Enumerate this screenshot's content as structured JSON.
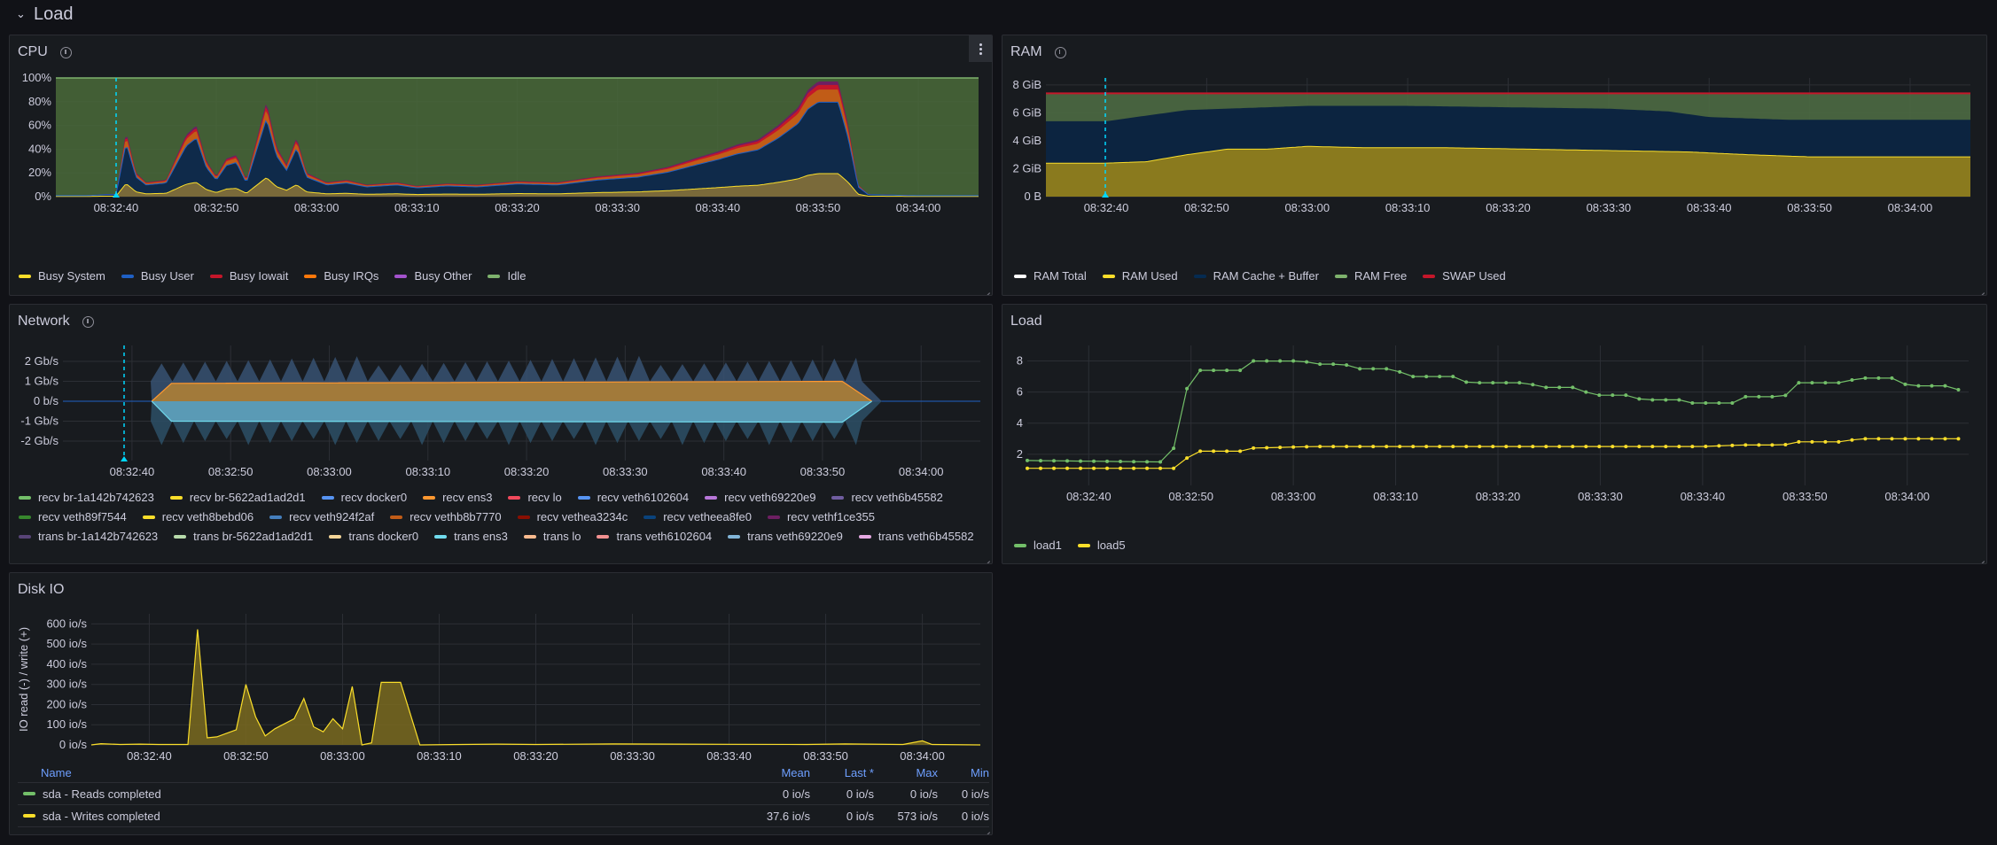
{
  "row": {
    "title": "Load"
  },
  "cpu": {
    "title": "CPU",
    "legend": [
      {
        "label": "Busy System",
        "color": "#fade2a"
      },
      {
        "label": "Busy User",
        "color": "#1f60c4"
      },
      {
        "label": "Busy Iowait",
        "color": "#c4162a"
      },
      {
        "label": "Busy IRQs",
        "color": "#ff780a"
      },
      {
        "label": "Busy Other",
        "color": "#a352cc"
      },
      {
        "label": "Idle",
        "color": "#7eb26d"
      }
    ],
    "chart_data": {
      "type": "area",
      "x": [
        "08:32:40",
        "08:32:50",
        "08:33:00",
        "08:33:10",
        "08:33:20",
        "08:33:30",
        "08:33:40",
        "08:33:50",
        "08:34:00"
      ],
      "y_ticks": [
        "0%",
        "20%",
        "40%",
        "60%",
        "80%",
        "100%"
      ],
      "ylim": [
        0,
        100
      ],
      "time_range": [
        "08:32:34",
        "08:34:06"
      ],
      "busy_total_percent": [
        [
          34,
          1
        ],
        [
          37,
          1
        ],
        [
          39,
          2
        ],
        [
          40,
          2
        ],
        [
          41,
          55
        ],
        [
          42,
          20
        ],
        [
          43,
          12
        ],
        [
          45,
          14
        ],
        [
          47,
          52
        ],
        [
          48,
          60
        ],
        [
          49,
          30
        ],
        [
          50,
          17
        ],
        [
          51,
          32
        ],
        [
          52,
          35
        ],
        [
          53,
          14
        ],
        [
          55,
          80
        ],
        [
          56,
          42
        ],
        [
          57,
          27
        ],
        [
          58,
          50
        ],
        [
          59,
          20
        ],
        [
          61,
          12
        ],
        [
          63,
          14
        ],
        [
          65,
          10
        ],
        [
          68,
          12
        ],
        [
          70,
          9
        ],
        [
          73,
          11
        ],
        [
          76,
          10
        ],
        [
          80,
          13
        ],
        [
          84,
          12
        ],
        [
          88,
          17
        ],
        [
          92,
          20
        ],
        [
          95,
          25
        ],
        [
          98,
          33
        ],
        [
          100,
          38
        ],
        [
          102,
          44
        ],
        [
          104,
          48
        ],
        [
          106,
          60
        ],
        [
          108,
          75
        ],
        [
          109,
          90
        ],
        [
          110,
          97
        ],
        [
          112,
          97
        ],
        [
          113,
          60
        ],
        [
          114,
          10
        ],
        [
          115,
          2
        ],
        [
          120,
          1
        ],
        [
          126,
          1
        ]
      ]
    }
  },
  "ram": {
    "title": "RAM",
    "legend": [
      {
        "label": "RAM Total",
        "color": "#ffffff"
      },
      {
        "label": "RAM Used",
        "color": "#fade2a"
      },
      {
        "label": "RAM Cache + Buffer",
        "color": "#052b51"
      },
      {
        "label": "RAM Free",
        "color": "#7eb26d"
      },
      {
        "label": "SWAP Used",
        "color": "#c4162a"
      }
    ],
    "chart_data": {
      "type": "area",
      "x": [
        "08:32:40",
        "08:32:50",
        "08:33:00",
        "08:33:10",
        "08:33:20",
        "08:33:30",
        "08:33:40",
        "08:33:50",
        "08:34:00"
      ],
      "y_ticks": [
        "0 B",
        "2 GiB",
        "4 GiB",
        "6 GiB",
        "8 GiB"
      ],
      "ylim": [
        0,
        8.5
      ],
      "total_gib": 7.4,
      "used_gib": [
        [
          34,
          2.4
        ],
        [
          40,
          2.4
        ],
        [
          44,
          2.5
        ],
        [
          48,
          3.0
        ],
        [
          52,
          3.4
        ],
        [
          56,
          3.4
        ],
        [
          60,
          3.6
        ],
        [
          66,
          3.5
        ],
        [
          74,
          3.5
        ],
        [
          82,
          3.4
        ],
        [
          90,
          3.3
        ],
        [
          98,
          3.2
        ],
        [
          104,
          3.0
        ],
        [
          110,
          2.85
        ],
        [
          126,
          2.85
        ]
      ],
      "used_plus_cache_gib": [
        [
          34,
          5.4
        ],
        [
          40,
          5.4
        ],
        [
          44,
          5.8
        ],
        [
          48,
          6.2
        ],
        [
          52,
          6.3
        ],
        [
          60,
          6.5
        ],
        [
          70,
          6.5
        ],
        [
          80,
          6.4
        ],
        [
          90,
          6.3
        ],
        [
          96,
          6.1
        ],
        [
          100,
          5.7
        ],
        [
          108,
          5.5
        ],
        [
          126,
          5.5
        ]
      ]
    }
  },
  "network": {
    "title": "Network",
    "legend": [
      {
        "label": "recv br-1a142b742623",
        "color": "#73bf69"
      },
      {
        "label": "recv br-5622ad1ad2d1",
        "color": "#fade2a"
      },
      {
        "label": "recv docker0",
        "color": "#5794f2"
      },
      {
        "label": "recv ens3",
        "color": "#ff9830"
      },
      {
        "label": "recv lo",
        "color": "#f2495c"
      },
      {
        "label": "recv veth6102604",
        "color": "#5794f2"
      },
      {
        "label": "recv veth69220e9",
        "color": "#b877d9"
      },
      {
        "label": "recv veth6b45582",
        "color": "#705da0"
      },
      {
        "label": "recv veth89f7544",
        "color": "#37872d"
      },
      {
        "label": "recv veth8bebd06",
        "color": "#fade2a"
      },
      {
        "label": "recv veth924f2af",
        "color": "#447ebc"
      },
      {
        "label": "recv vethb8b7770",
        "color": "#c15c17"
      },
      {
        "label": "recv vethea3234c",
        "color": "#890f02"
      },
      {
        "label": "recv vetheea8fe0",
        "color": "#0a437c"
      },
      {
        "label": "recv vethf1ce355",
        "color": "#6d1f62"
      },
      {
        "label": "trans br-1a142b742623",
        "color": "#584477"
      },
      {
        "label": "trans br-5622ad1ad2d1",
        "color": "#b7dbab"
      },
      {
        "label": "trans docker0",
        "color": "#f4d598"
      },
      {
        "label": "trans ens3",
        "color": "#70dbed"
      },
      {
        "label": "trans lo",
        "color": "#f9ba8f"
      },
      {
        "label": "trans veth6102604",
        "color": "#f29191"
      },
      {
        "label": "trans veth69220e9",
        "color": "#82b5d8"
      },
      {
        "label": "trans veth6b45582",
        "color": "#e5a8e2"
      }
    ],
    "chart_data": {
      "type": "area",
      "x": [
        "08:32:40",
        "08:32:50",
        "08:33:00",
        "08:33:10",
        "08:33:20",
        "08:33:30",
        "08:33:40",
        "08:33:50",
        "08:34:00"
      ],
      "y_ticks": [
        "2 Gb/s",
        "1 Gb/s",
        "0 b/s",
        "-1 Gb/s",
        "-2 Gb/s"
      ],
      "ylim": [
        -2.6,
        2.6
      ],
      "recv_gbps_range": [
        1.0,
        2.2
      ],
      "trans_gbps_range": [
        -1.0,
        -2.3
      ]
    }
  },
  "load": {
    "title": "Load",
    "legend": [
      {
        "label": "load1",
        "color": "#73bf69"
      },
      {
        "label": "load5",
        "color": "#fade2a"
      }
    ],
    "chart_data": {
      "type": "line",
      "x": [
        "08:32:40",
        "08:32:50",
        "08:33:00",
        "08:33:10",
        "08:33:20",
        "08:33:30",
        "08:33:40",
        "08:33:50",
        "08:34:00"
      ],
      "y_ticks": [
        "2",
        "4",
        "6",
        "8"
      ],
      "ylim": [
        0,
        9
      ],
      "load1": [
        [
          34,
          1.6
        ],
        [
          48,
          1.5
        ],
        [
          50,
          7.4
        ],
        [
          55,
          7.4
        ],
        [
          56,
          8.0
        ],
        [
          61,
          8.0
        ],
        [
          62,
          7.8
        ],
        [
          65,
          7.8
        ],
        [
          66,
          7.5
        ],
        [
          70,
          7.5
        ],
        [
          71,
          7.0
        ],
        [
          76,
          7.0
        ],
        [
          77,
          6.6
        ],
        [
          83,
          6.6
        ],
        [
          84,
          6.3
        ],
        [
          88,
          6.3
        ],
        [
          89,
          5.8
        ],
        [
          93,
          5.8
        ],
        [
          94,
          5.5
        ],
        [
          98,
          5.5
        ],
        [
          99,
          5.3
        ],
        [
          103,
          5.3
        ],
        [
          104,
          5.7
        ],
        [
          108,
          5.7
        ],
        [
          109,
          6.6
        ],
        [
          114,
          6.6
        ],
        [
          115,
          6.9
        ],
        [
          119,
          6.9
        ],
        [
          120,
          6.4
        ],
        [
          124,
          6.4
        ],
        [
          126,
          5.9
        ]
      ],
      "load5": [
        [
          34,
          1.1
        ],
        [
          49,
          1.1
        ],
        [
          50,
          2.2
        ],
        [
          55,
          2.2
        ],
        [
          56,
          2.4
        ],
        [
          62,
          2.5
        ],
        [
          80,
          2.5
        ],
        [
          100,
          2.5
        ],
        [
          104,
          2.6
        ],
        [
          108,
          2.6
        ],
        [
          109,
          2.8
        ],
        [
          114,
          2.8
        ],
        [
          115,
          3.0
        ],
        [
          126,
          3.0
        ]
      ]
    }
  },
  "disk": {
    "title": "Disk IO",
    "ylabel": "IO read (-) / write (+)",
    "chart_data": {
      "type": "area",
      "x": [
        "08:32:40",
        "08:32:50",
        "08:33:00",
        "08:33:10",
        "08:33:20",
        "08:33:30",
        "08:33:40",
        "08:33:50",
        "08:34:00"
      ],
      "y_ticks": [
        "0 io/s",
        "100 io/s",
        "200 io/s",
        "300 io/s",
        "400 io/s",
        "500 io/s",
        "600 io/s"
      ],
      "ylim": [
        0,
        650
      ],
      "writes_io_s": [
        [
          34,
          0
        ],
        [
          35,
          6
        ],
        [
          37,
          2
        ],
        [
          39,
          4
        ],
        [
          41,
          2
        ],
        [
          44,
          2
        ],
        [
          45,
          573
        ],
        [
          46,
          35
        ],
        [
          47,
          40
        ],
        [
          49,
          75
        ],
        [
          50,
          300
        ],
        [
          51,
          140
        ],
        [
          52,
          45
        ],
        [
          53,
          80
        ],
        [
          55,
          130
        ],
        [
          56,
          230
        ],
        [
          57,
          90
        ],
        [
          58,
          65
        ],
        [
          59,
          130
        ],
        [
          60,
          80
        ],
        [
          61,
          290
        ],
        [
          62,
          0
        ],
        [
          63,
          10
        ],
        [
          64,
          310
        ],
        [
          66,
          310
        ],
        [
          68,
          0
        ],
        [
          76,
          4
        ],
        [
          80,
          2
        ],
        [
          88,
          5
        ],
        [
          100,
          3
        ],
        [
          108,
          2
        ],
        [
          112,
          5
        ],
        [
          118,
          2
        ],
        [
          120,
          20
        ],
        [
          121,
          2
        ],
        [
          126,
          0
        ]
      ]
    },
    "table": {
      "headers": {
        "name": "Name",
        "mean": "Mean",
        "last": "Last *",
        "max": "Max",
        "min": "Min"
      },
      "rows": [
        {
          "name": "sda - Reads completed",
          "color": "#73bf69",
          "mean": "0 io/s",
          "last": "0 io/s",
          "max": "0 io/s",
          "min": "0 io/s"
        },
        {
          "name": "sda - Writes completed",
          "color": "#fade2a",
          "mean": "37.6 io/s",
          "last": "0 io/s",
          "max": "573 io/s",
          "min": "0 io/s"
        }
      ]
    }
  }
}
